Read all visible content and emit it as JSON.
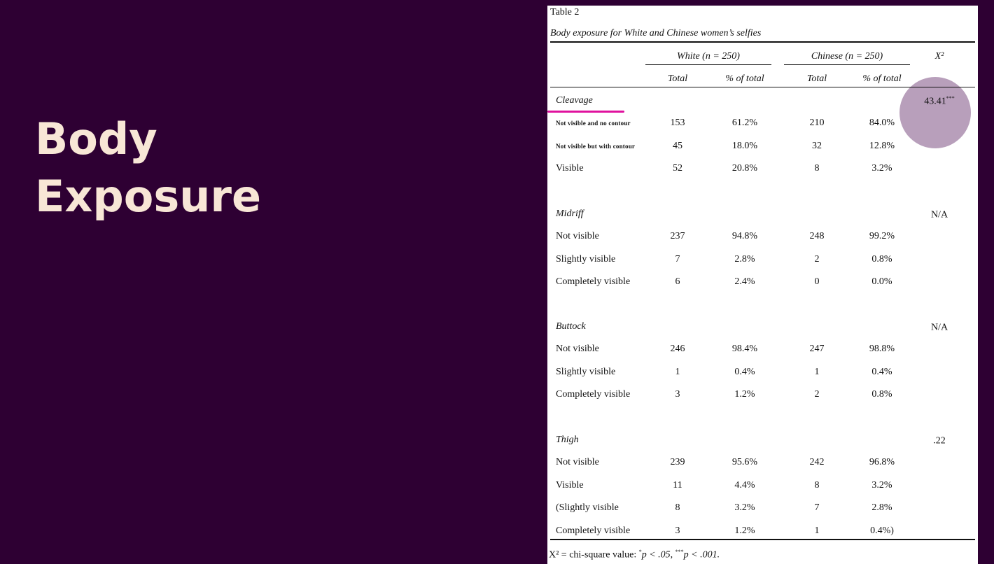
{
  "slide": {
    "title_line1": "Body",
    "title_line2": "Exposure"
  },
  "table": {
    "label": "Table 2",
    "caption": "Body exposure for White and Chinese women’s selfies",
    "group_white": "White (n = 250)",
    "group_chinese": "Chinese (n = 250)",
    "chi_header": "X²",
    "col_total": "Total",
    "col_pct": "% of total",
    "sections": [
      {
        "name": "Cleavage",
        "chi_value": "43.41",
        "chi_sig": "***",
        "rows": [
          {
            "label": "Not visible and no contour",
            "small": true,
            "w_total": "153",
            "w_pct": "61.2%",
            "c_total": "210",
            "c_pct": "84.0%"
          },
          {
            "label": "Not visible but with contour",
            "small": true,
            "w_total": "45",
            "w_pct": "18.0%",
            "c_total": "32",
            "c_pct": "12.8%"
          },
          {
            "label": "Visible",
            "small": false,
            "w_total": "52",
            "w_pct": "20.8%",
            "c_total": "8",
            "c_pct": "3.2%"
          }
        ]
      },
      {
        "name": "Midriff",
        "chi_value": "N/A",
        "chi_sig": "",
        "rows": [
          {
            "label": "Not visible",
            "small": false,
            "w_total": "237",
            "w_pct": "94.8%",
            "c_total": "248",
            "c_pct": "99.2%"
          },
          {
            "label": "Slightly visible",
            "small": false,
            "w_total": "7",
            "w_pct": "2.8%",
            "c_total": "2",
            "c_pct": "0.8%"
          },
          {
            "label": "Completely visible",
            "small": false,
            "w_total": "6",
            "w_pct": "2.4%",
            "c_total": "0",
            "c_pct": "0.0%"
          }
        ]
      },
      {
        "name": "Buttock",
        "chi_value": "N/A",
        "chi_sig": "",
        "rows": [
          {
            "label": "Not visible",
            "small": false,
            "w_total": "246",
            "w_pct": "98.4%",
            "c_total": "247",
            "c_pct": "98.8%"
          },
          {
            "label": "Slightly visible",
            "small": false,
            "w_total": "1",
            "w_pct": "0.4%",
            "c_total": "1",
            "c_pct": "0.4%"
          },
          {
            "label": "Completely visible",
            "small": false,
            "w_total": "3",
            "w_pct": "1.2%",
            "c_total": "2",
            "c_pct": "0.8%"
          }
        ]
      },
      {
        "name": "Thigh",
        "chi_value": ".22",
        "chi_sig": "",
        "rows": [
          {
            "label": "Not visible",
            "small": false,
            "w_total": "239",
            "w_pct": "95.6%",
            "c_total": "242",
            "c_pct": "96.8%"
          },
          {
            "label": "Visible",
            "small": false,
            "w_total": "11",
            "w_pct": "4.4%",
            "c_total": "8",
            "c_pct": "3.2%"
          },
          {
            "label": "(Slightly visible",
            "small": false,
            "w_total": "8",
            "w_pct": "3.2%",
            "c_total": "7",
            "c_pct": "2.8%"
          },
          {
            "label": "Completely visible",
            "small": false,
            "w_total": "3",
            "w_pct": "1.2%",
            "c_total": "1",
            "c_pct": "0.4%)"
          }
        ]
      }
    ],
    "footnote_prefix": "X² = chi-square value: ",
    "footnote_sig1": "*",
    "footnote_p1": "p < .05, ",
    "footnote_sig2": "***",
    "footnote_p2": "p < .001."
  },
  "annotation_colors": {
    "underline": "#e0119e",
    "circle": "#8c6491"
  }
}
